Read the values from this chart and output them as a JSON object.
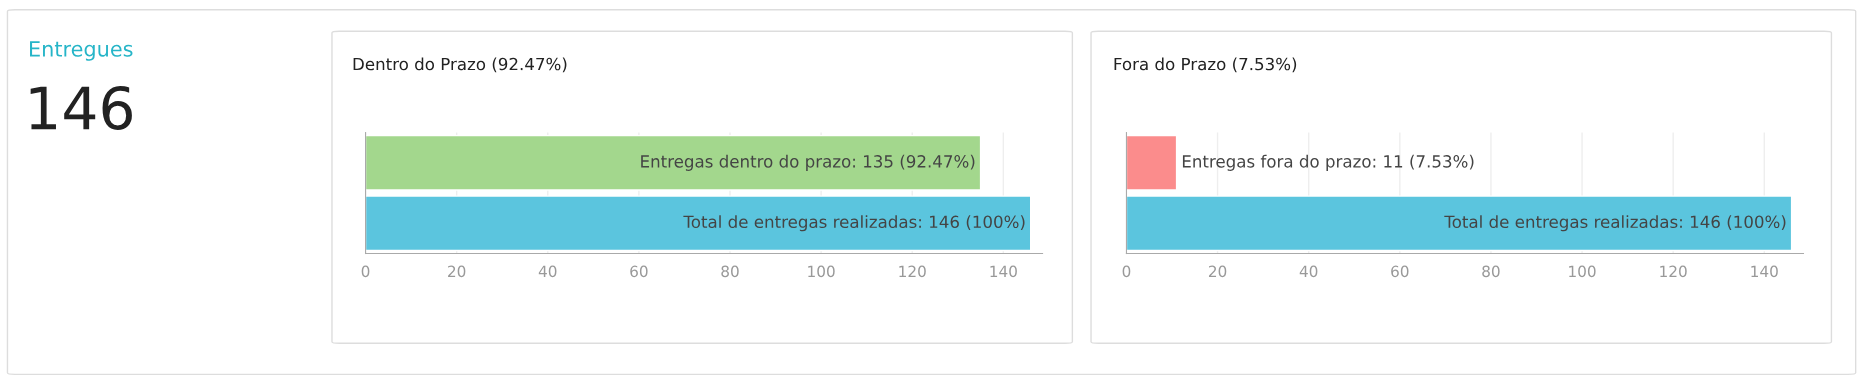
{
  "chart_data": [
    {
      "type": "other",
      "title": "Entregues",
      "annotations": [
        "146"
      ]
    },
    {
      "type": "bar",
      "orientation": "horizontal",
      "title": "Dentro do Prazo (92.47%)",
      "categories": [
        null,
        null
      ],
      "values": [
        135,
        146
      ],
      "colors": [
        "#a3d78d",
        "#5bc5de"
      ],
      "value_labels": [
        "Entregas dentro do prazo: 135 (92.47%)",
        "Total de entregas realizadas: 146 (100%)"
      ],
      "xlim": [
        0,
        148.6
      ],
      "xticks": [
        0,
        20,
        40,
        60,
        80,
        100,
        120,
        140
      ],
      "grid": "x",
      "tick_labels": "x",
      "legend": false
    },
    {
      "type": "bar",
      "orientation": "horizontal",
      "title": "Fora do Prazo (7.53%)",
      "categories": [
        null,
        null
      ],
      "values": [
        11,
        146
      ],
      "colors": [
        "#fb8c8c",
        "#5bc5de"
      ],
      "value_labels": [
        "Entregas fora do prazo: 11 (7.53%)",
        "Total de entregas realizadas: 146 (100%)"
      ],
      "xlim": [
        0,
        148.6
      ],
      "xticks": [
        0,
        20,
        40,
        60,
        80,
        100,
        120,
        140
      ],
      "grid": "x",
      "tick_labels": "x",
      "legend": false
    }
  ]
}
